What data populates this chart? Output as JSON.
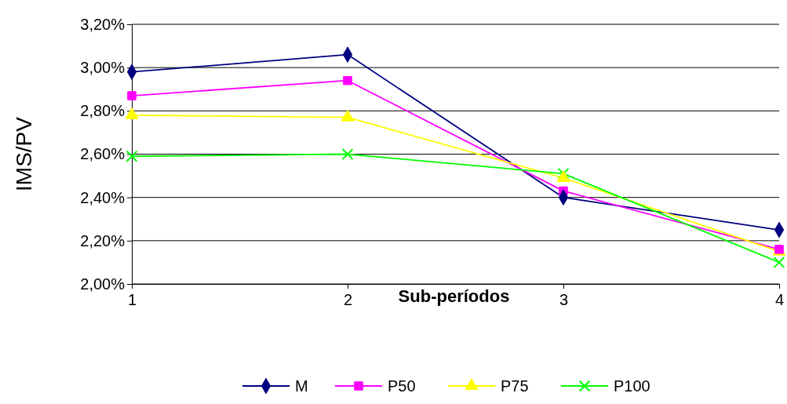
{
  "chart_data": {
    "type": "line",
    "xlabel": "Sub-períodos",
    "ylabel": "IMS/PV",
    "x": [
      1,
      2,
      3,
      4
    ],
    "xlim": [
      1,
      4
    ],
    "xticks": [
      1,
      2,
      3,
      4
    ],
    "ylim": [
      2.0,
      3.2
    ],
    "yticks": [
      {
        "value": 2.0,
        "label": "2,00%"
      },
      {
        "value": 2.2,
        "label": "2,20%"
      },
      {
        "value": 2.4,
        "label": "2,40%"
      },
      {
        "value": 2.6,
        "label": "2,60%"
      },
      {
        "value": 2.8,
        "label": "2,80%"
      },
      {
        "value": 3.0,
        "label": "3,00%"
      },
      {
        "value": 3.2,
        "label": "3,20%"
      }
    ],
    "grid": "y",
    "legend": "bottom",
    "series": [
      {
        "name": "M",
        "color": "#000080",
        "marker": "diamond",
        "values": [
          2.98,
          3.06,
          2.4,
          2.25
        ]
      },
      {
        "name": "P50",
        "color": "#ff00ff",
        "marker": "square",
        "values": [
          2.87,
          2.94,
          2.43,
          2.16
        ]
      },
      {
        "name": "P75",
        "color": "#ffff00",
        "marker": "triangle",
        "values": [
          2.78,
          2.77,
          2.49,
          2.15
        ]
      },
      {
        "name": "P100",
        "color": "#00ff00",
        "marker": "cross",
        "values": [
          2.59,
          2.6,
          2.51,
          2.1
        ]
      }
    ]
  }
}
